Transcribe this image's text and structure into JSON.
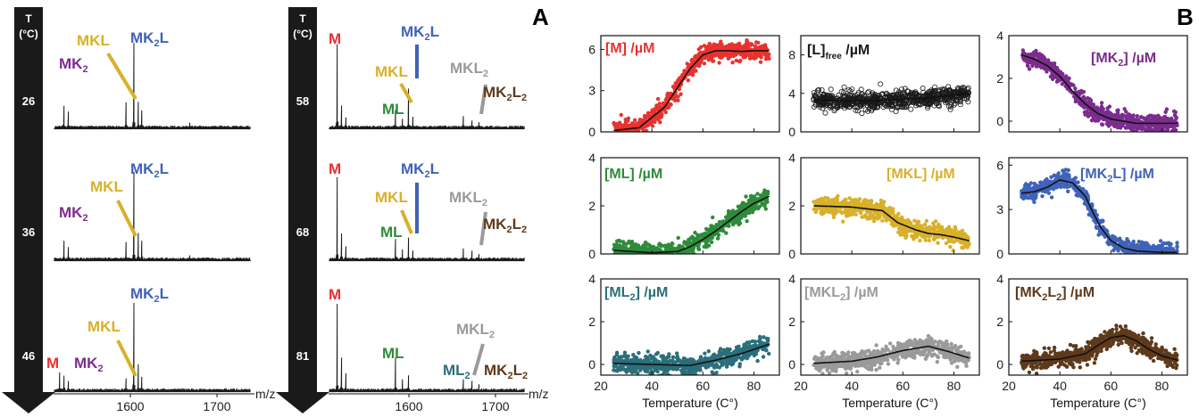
{
  "figure": {
    "panel_a_label": "A",
    "panel_b_label": "B",
    "arrow_t_label": "T",
    "arrow_unit_label": "(°C)",
    "mz_label": "m/z",
    "x_axis_title": "Temperature (C°)"
  },
  "colors": {
    "M": "#e8322f",
    "L": "#1a1a1a",
    "MK2": "#7b2d8e",
    "ML": "#2e8b3a",
    "MKL": "#d8b02a",
    "MK2L": "#3f63b8",
    "ML2": "#2b6f7a",
    "MKL2": "#9a9a9a",
    "MK2L2": "#5e3a1b"
  },
  "chart_data": [
    {
      "type": "line",
      "panel": "A",
      "subtitle": "mass spectra, left column",
      "xlabel": "m/z",
      "xlim": [
        1515,
        1745
      ],
      "x_ticks": [
        1600,
        1700
      ],
      "temperatures": [
        "26",
        "36",
        "46"
      ],
      "spectra": [
        {
          "temperature": "26",
          "labels": [
            "MK2",
            "MKL",
            "MK2L"
          ]
        },
        {
          "temperature": "36",
          "labels": [
            "MK2",
            "MKL",
            "MK2L"
          ]
        },
        {
          "temperature": "46",
          "labels": [
            "M",
            "MK2",
            "MKL",
            "MK2L"
          ]
        }
      ]
    },
    {
      "type": "line",
      "panel": "A",
      "subtitle": "mass spectra, right column",
      "xlabel": "m/z",
      "xlim": [
        1515,
        1745
      ],
      "x_ticks": [
        1600,
        1700
      ],
      "temperatures": [
        "58",
        "68",
        "81"
      ],
      "spectra": [
        {
          "temperature": "58",
          "labels": [
            "M",
            "MK2L",
            "MKL",
            "ML",
            "MKL2",
            "MK2L2"
          ]
        },
        {
          "temperature": "68",
          "labels": [
            "M",
            "MK2L",
            "MKL",
            "ML",
            "MKL2",
            "MK2L2"
          ]
        },
        {
          "temperature": "81",
          "labels": [
            "M",
            "ML",
            "MKL2",
            "ML2",
            "MK2L2"
          ]
        }
      ]
    },
    {
      "type": "scatter",
      "panel": "B",
      "key": "M",
      "title": "[M] /µM",
      "xlabel": "",
      "xlim": [
        20,
        90
      ],
      "ylim": [
        0,
        7
      ],
      "y_ticks": [
        0,
        3,
        6
      ],
      "fit": {
        "x": [
          25,
          35,
          45,
          50,
          55,
          60,
          65,
          70,
          75,
          80,
          86
        ],
        "y": [
          0.1,
          0.3,
          1.8,
          3.2,
          4.6,
          5.6,
          5.9,
          5.9,
          5.85,
          5.9,
          5.9
        ]
      }
    },
    {
      "type": "scatter",
      "panel": "B",
      "key": "L",
      "title": "[L]free /µM",
      "xlabel": "",
      "xlim": [
        20,
        90
      ],
      "ylim": [
        0,
        10
      ],
      "y_ticks": [
        0,
        4,
        8
      ],
      "fit": {
        "x": [
          25,
          40,
          55,
          70,
          86
        ],
        "y": [
          3.3,
          3.2,
          3.3,
          3.5,
          4.0
        ]
      }
    },
    {
      "type": "scatter",
      "panel": "B",
      "key": "MK2",
      "title": "[MK2] /µM",
      "xlabel": "",
      "xlim": [
        20,
        90
      ],
      "ylim": [
        -0.5,
        4
      ],
      "y_ticks": [
        0,
        2,
        4
      ],
      "fit": {
        "x": [
          25,
          30,
          35,
          40,
          45,
          50,
          55,
          60,
          70,
          80,
          86
        ],
        "y": [
          3.1,
          2.9,
          2.6,
          2.1,
          1.4,
          0.8,
          0.35,
          0.1,
          -0.1,
          -0.1,
          -0.1
        ]
      }
    },
    {
      "type": "scatter",
      "panel": "B",
      "key": "ML",
      "title": "[ML] /µM",
      "xlabel": "",
      "xlim": [
        20,
        90
      ],
      "ylim": [
        0,
        4
      ],
      "y_ticks": [
        0,
        2,
        4
      ],
      "fit": {
        "x": [
          25,
          40,
          50,
          55,
          60,
          65,
          70,
          75,
          80,
          86
        ],
        "y": [
          0.15,
          0.05,
          0.1,
          0.3,
          0.6,
          0.95,
          1.35,
          1.75,
          2.1,
          2.4
        ]
      }
    },
    {
      "type": "scatter",
      "panel": "B",
      "key": "MKL",
      "title": "[MKL] /µM",
      "xlabel": "",
      "xlim": [
        20,
        90
      ],
      "ylim": [
        0,
        4
      ],
      "y_ticks": [
        0,
        2,
        4
      ],
      "fit": {
        "x": [
          25,
          40,
          52,
          58,
          65,
          70,
          75,
          80,
          86
        ],
        "y": [
          2.0,
          1.95,
          1.8,
          1.3,
          1.0,
          0.85,
          0.8,
          0.7,
          0.55
        ]
      }
    },
    {
      "type": "scatter",
      "panel": "B",
      "key": "MK2L",
      "title": "[MK2L] /µM",
      "xlabel": "",
      "xlim": [
        20,
        90
      ],
      "ylim": [
        0,
        6.5
      ],
      "y_ticks": [
        0,
        3,
        6
      ],
      "fit": {
        "x": [
          25,
          30,
          35,
          40,
          45,
          50,
          53,
          56,
          60,
          65,
          70,
          80,
          86
        ],
        "y": [
          4.1,
          4.2,
          4.5,
          5.0,
          4.8,
          3.9,
          2.8,
          1.8,
          0.9,
          0.4,
          0.2,
          0.1,
          0.1
        ]
      }
    },
    {
      "type": "scatter",
      "panel": "B",
      "key": "ML2",
      "title": "[ML2] /µM",
      "xlabel": "Temperature (C°)",
      "xlim": [
        20,
        90
      ],
      "ylim": [
        -0.5,
        4
      ],
      "y_ticks": [
        0,
        2,
        4
      ],
      "fit": {
        "x": [
          25,
          40,
          55,
          65,
          75,
          86
        ],
        "y": [
          0.05,
          0.0,
          -0.05,
          0.2,
          0.5,
          0.95
        ]
      }
    },
    {
      "type": "scatter",
      "panel": "B",
      "key": "MKL2",
      "title": "[MKL2] /µM",
      "xlabel": "Temperature (C°)",
      "xlim": [
        20,
        90
      ],
      "ylim": [
        -0.5,
        4
      ],
      "y_ticks": [
        0,
        2,
        4
      ],
      "fit": {
        "x": [
          25,
          40,
          50,
          60,
          70,
          78,
          86
        ],
        "y": [
          0.05,
          0.15,
          0.35,
          0.65,
          0.85,
          0.6,
          0.3
        ]
      }
    },
    {
      "type": "scatter",
      "panel": "B",
      "key": "MK2L2",
      "title": "[MK2L2] /µM",
      "xlabel": "Temperature (C°)",
      "xlim": [
        20,
        90
      ],
      "ylim": [
        -0.5,
        4
      ],
      "y_ticks": [
        0,
        2,
        4
      ],
      "fit": {
        "x": [
          25,
          40,
          50,
          55,
          60,
          65,
          70,
          75,
          80,
          86
        ],
        "y": [
          0.15,
          0.25,
          0.5,
          0.9,
          1.25,
          1.35,
          1.1,
          0.7,
          0.4,
          0.2
        ]
      }
    }
  ]
}
